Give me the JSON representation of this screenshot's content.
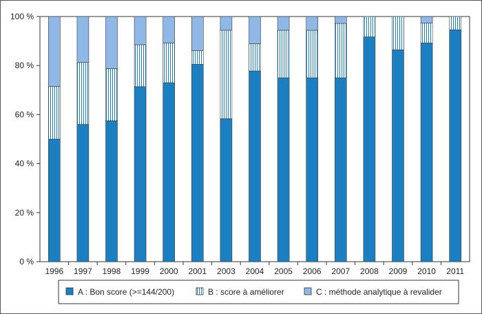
{
  "chart_data": {
    "type": "bar",
    "stacked": true,
    "percent": true,
    "categories": [
      "1996",
      "1997",
      "1998",
      "1999",
      "2000",
      "2001",
      "2003",
      "2004",
      "2005",
      "2006",
      "2007",
      "2008",
      "2009",
      "2010",
      "2011"
    ],
    "series": [
      {
        "name": "A : Bon score (>=144/200)",
        "values": [
          50,
          56,
          57.5,
          71.4,
          73,
          80.5,
          58.3,
          77.8,
          75,
          75,
          75,
          91.7,
          86.4,
          89.2,
          94.6
        ],
        "color": "#1b7fc1",
        "pattern": "solid"
      },
      {
        "name": "B : score à améliorer",
        "values": [
          21.5,
          25.3,
          21.3,
          17.1,
          16.2,
          5.6,
          36.1,
          11.1,
          19.4,
          19.4,
          22.2,
          8.3,
          13.6,
          8.1,
          5.4
        ],
        "color": "#1b7fc1",
        "pattern": "vertical-hatch"
      },
      {
        "name": "C : méthode analytique à revalider",
        "values": [
          28.5,
          18.7,
          21.2,
          11.5,
          10.8,
          13.9,
          5.6,
          11.1,
          5.6,
          5.6,
          2.8,
          0,
          0,
          2.7,
          0
        ],
        "color": "#8fb8e6",
        "pattern": "solid"
      }
    ],
    "yticks": [
      "0 %",
      "20 %",
      "40 %",
      "60 %",
      "80 %",
      "100 %"
    ],
    "ytick_values": [
      0,
      20,
      40,
      60,
      80,
      100
    ],
    "ylim": [
      0,
      100
    ],
    "grid": false,
    "legend_position": "bottom",
    "title": "",
    "xlabel": "",
    "ylabel": ""
  }
}
